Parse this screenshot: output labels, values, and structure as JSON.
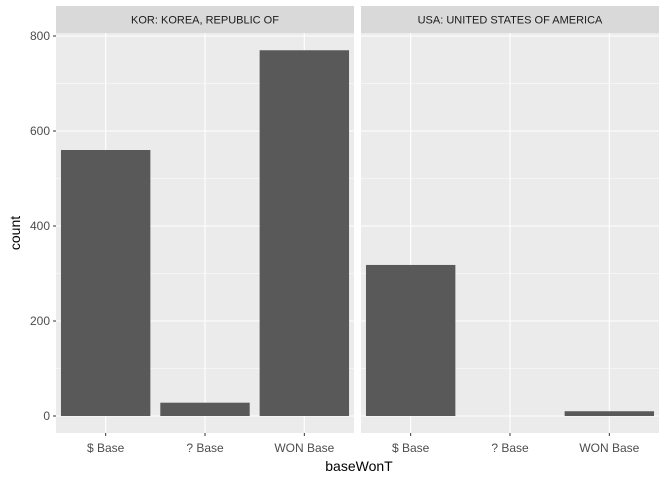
{
  "chart_data": {
    "type": "bar",
    "xlabel": "baseWonT",
    "ylabel": "count",
    "ylim": [
      0,
      800
    ],
    "yticks": [
      0,
      200,
      400,
      600,
      800
    ],
    "categories": [
      "$ Base",
      "? Base",
      "WON Base"
    ],
    "grid": true,
    "colors": {
      "bar": "#595959",
      "panel_bg": "#ebebeb",
      "strip_bg": "#d9d9d9",
      "grid": "#ffffff"
    },
    "facets": [
      {
        "label": "KOR: KOREA, REPUBLIC OF",
        "values": [
          560,
          28,
          770
        ]
      },
      {
        "label": "USA: UNITED STATES OF AMERICA",
        "values": [
          318,
          0,
          10
        ]
      }
    ]
  }
}
